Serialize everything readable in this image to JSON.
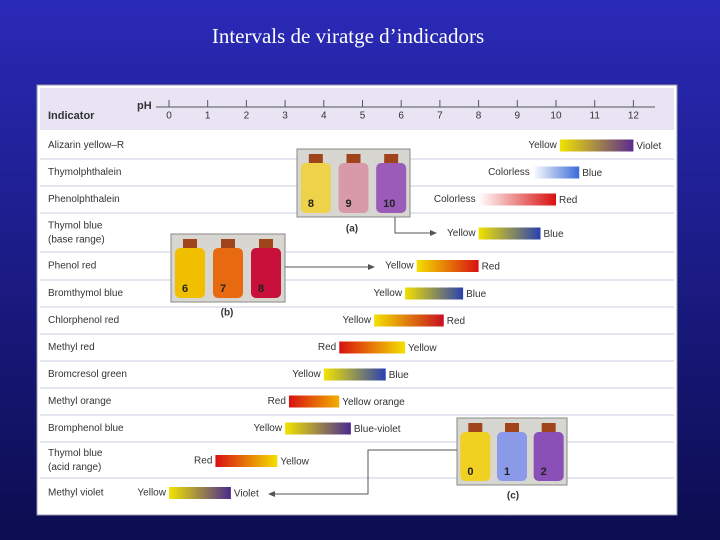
{
  "title": "Intervals de viratge d’indicadors",
  "chart_data": {
    "type": "range",
    "header": "Indicator",
    "x_label": "pH",
    "xlim": [
      -0.25,
      12.5
    ],
    "xticks": [
      0,
      1,
      2,
      3,
      4,
      5,
      6,
      7,
      8,
      9,
      10,
      11,
      12
    ],
    "categories": [
      "Alizarin yellow–R",
      "Thymolphthalein",
      "Phenolphthalein",
      "Thymol blue (base range)",
      "Phenol red",
      "Bromthymol blue",
      "Chlorphenol red",
      "Methyl red",
      "Bromcresol green",
      "Methyl orange",
      "Bromphenol blue",
      "Thymol blue (acid range)",
      "Methyl violet"
    ],
    "low": [
      10.1,
      9.4,
      8.0,
      8.0,
      6.4,
      6.1,
      5.3,
      4.4,
      4.0,
      3.1,
      3.0,
      1.2,
      0.0
    ],
    "high": [
      12.0,
      10.6,
      10.0,
      9.6,
      8.0,
      7.6,
      7.1,
      6.1,
      5.6,
      4.4,
      4.7,
      2.8,
      1.6
    ],
    "low_labels": [
      "Yellow",
      "Colorless",
      "Colorless",
      "Yellow",
      "Yellow",
      "Yellow",
      "Yellow",
      "Red",
      "Yellow",
      "Red",
      "Yellow",
      "Red",
      "Yellow"
    ],
    "high_labels": [
      "Violet",
      "Blue",
      "Red",
      "Blue",
      "Red",
      "Blue",
      "Red",
      "Yellow",
      "Blue",
      "Yellow orange",
      "Blue-violet",
      "Yellow",
      "Violet"
    ],
    "low_colors": [
      "#f0e400",
      "#ffffff",
      "#ffffff",
      "#f2e200",
      "#f4e000",
      "#f2e000",
      "#f4e000",
      "#d81010",
      "#f2e400",
      "#d81010",
      "#f2e400",
      "#d81010",
      "#f2e400"
    ],
    "high_colors": [
      "#5a2a90",
      "#3a6ad8",
      "#d81010",
      "#2a40b0",
      "#d81010",
      "#2a40b0",
      "#c81020",
      "#f4e000",
      "#2a40b0",
      "#f2b000",
      "#4a2a90",
      "#f4e000",
      "#4a2a90"
    ],
    "insets": [
      {
        "label": "(a)",
        "bottles": [
          "8",
          "9",
          "10"
        ],
        "colors": [
          "#eed24a",
          "#d89aa8",
          "#9a5cb8"
        ]
      },
      {
        "label": "(b)",
        "bottles": [
          "6",
          "7",
          "8"
        ],
        "colors": [
          "#f0c000",
          "#e86a10",
          "#c8103a"
        ]
      },
      {
        "label": "(c)",
        "bottles": [
          "0",
          "1",
          "2"
        ],
        "colors": [
          "#f0d020",
          "#8a9ae8",
          "#8a50b8"
        ]
      }
    ]
  }
}
